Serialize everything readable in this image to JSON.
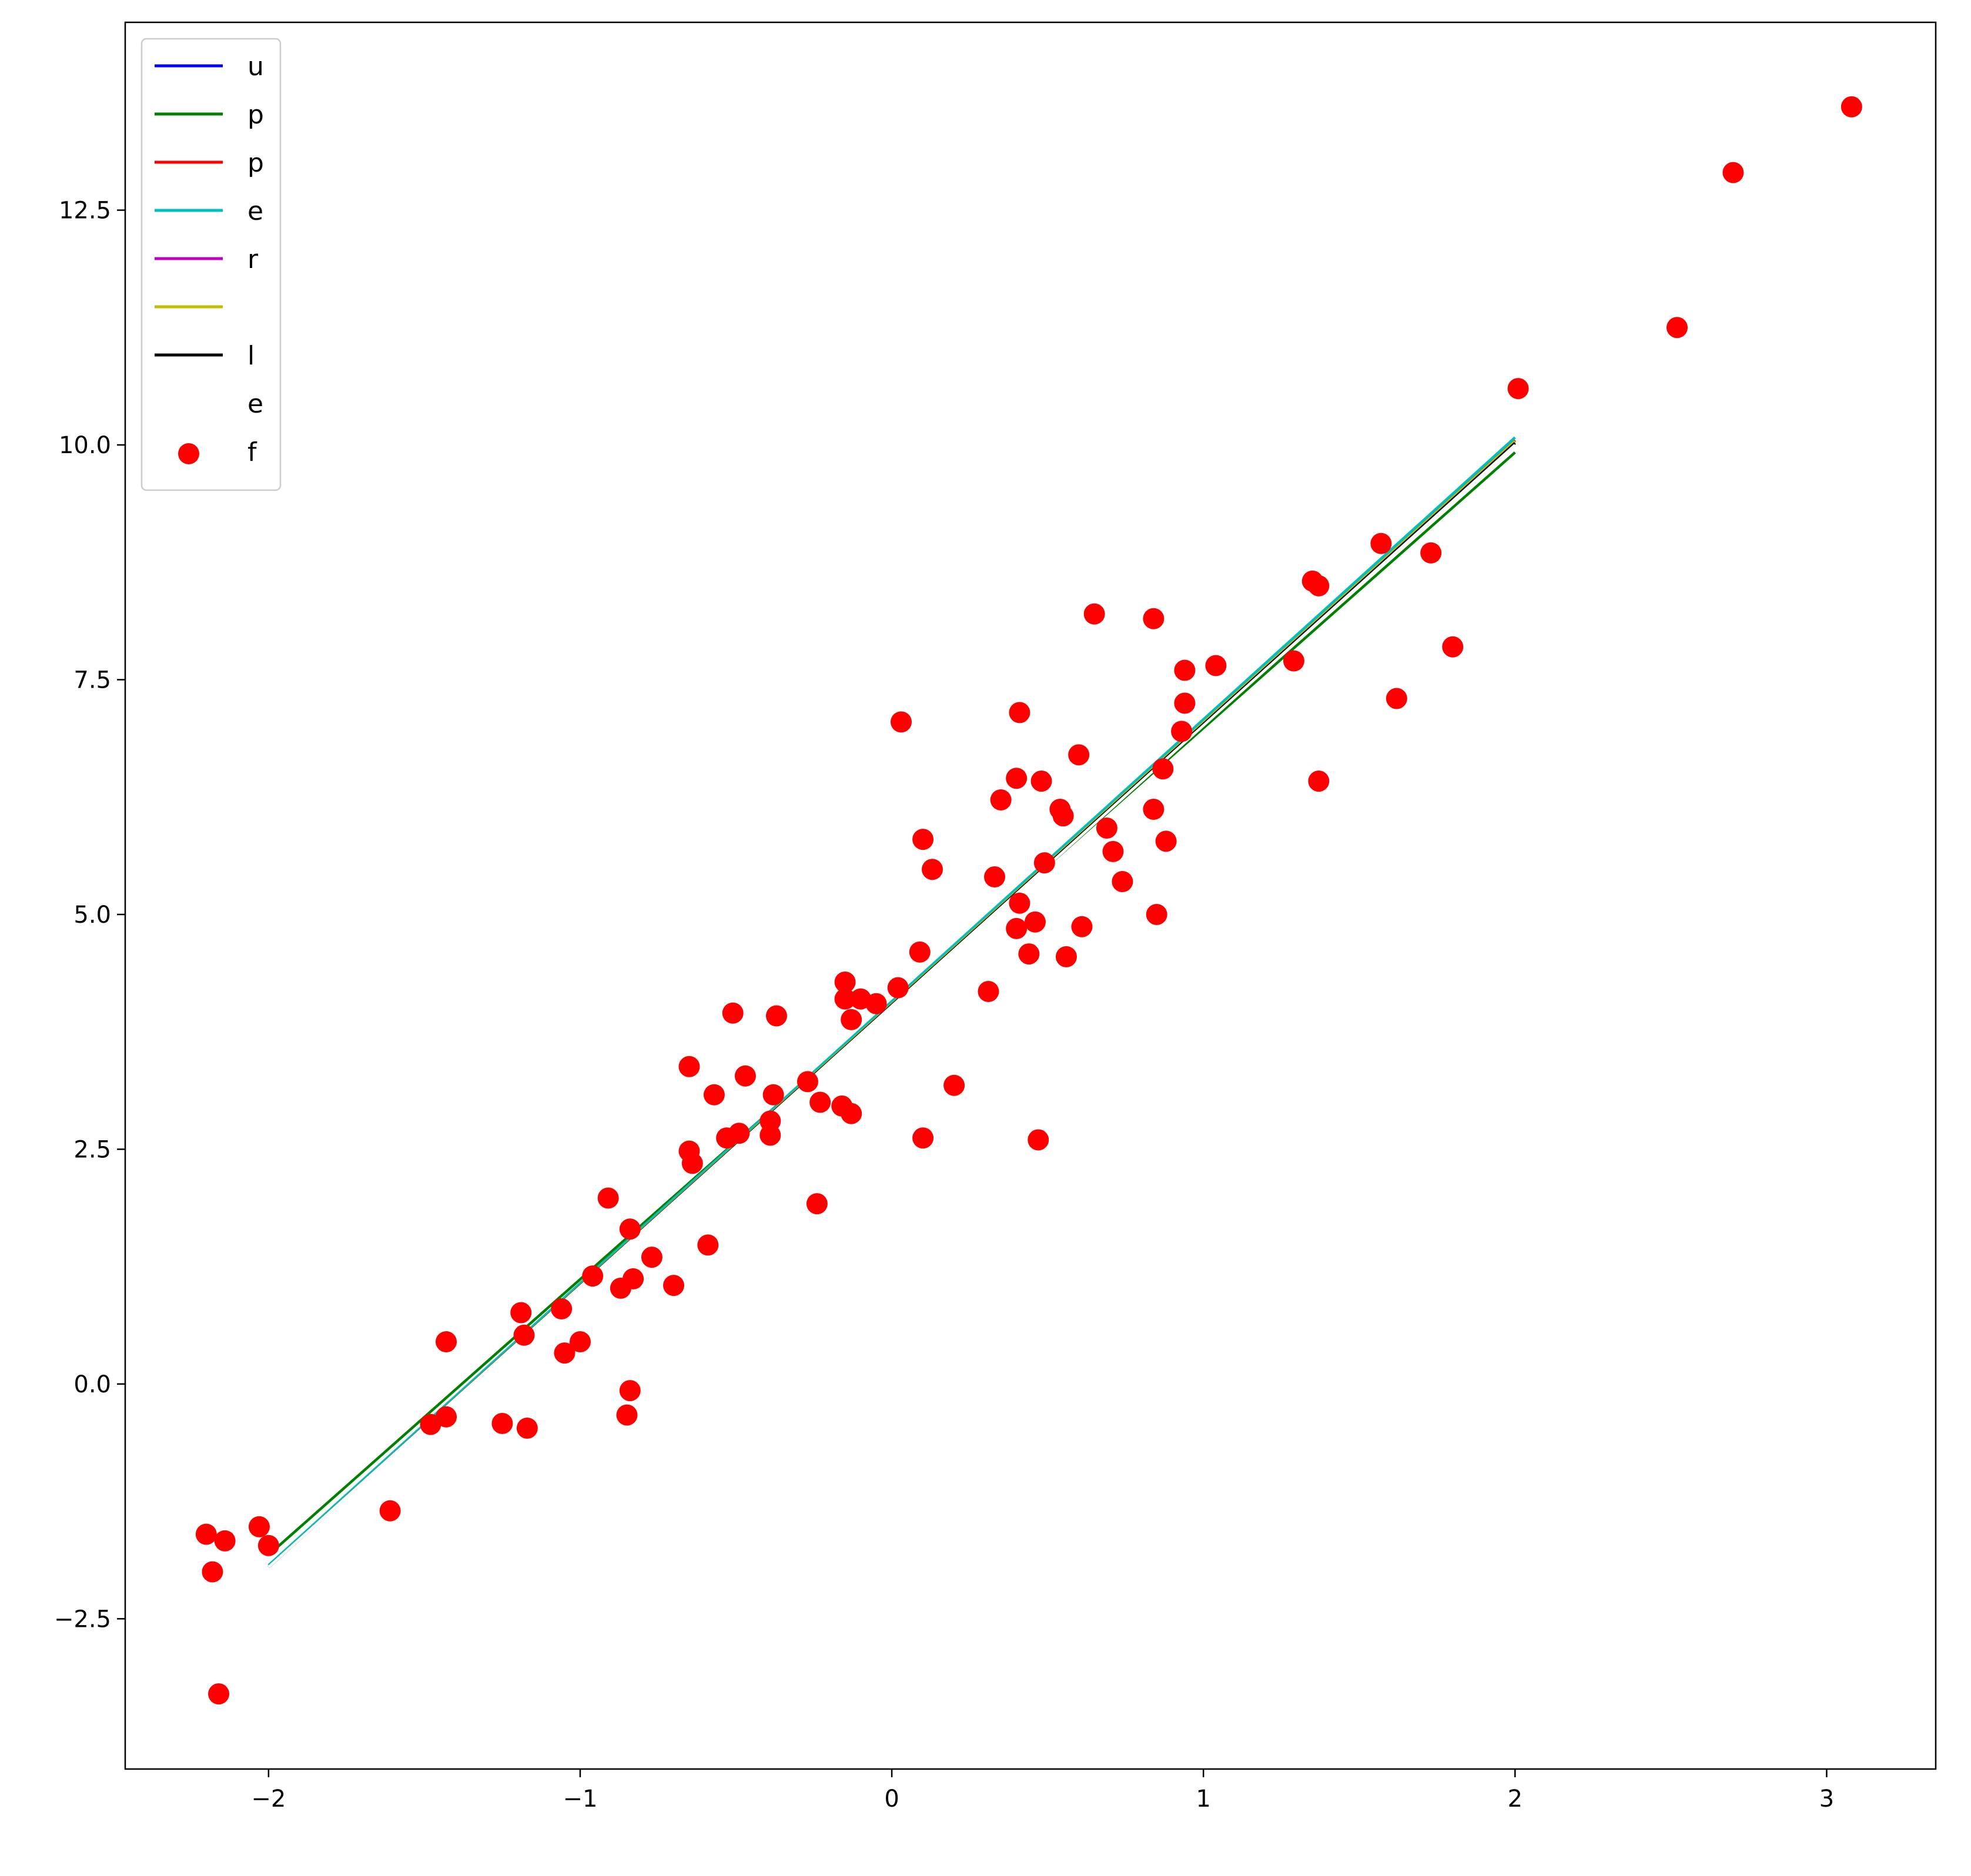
{
  "chart_data": {
    "type": "scatter",
    "title": "",
    "xlabel": "",
    "ylabel": "",
    "xlim": [
      -2.46,
      3.35
    ],
    "ylim": [
      -4.1,
      14.5
    ],
    "xticks": [
      -2,
      -1,
      0,
      1,
      2,
      3
    ],
    "xtick_labels": [
      "−2",
      "−1",
      "0",
      "1",
      "2",
      "3"
    ],
    "yticks": [
      -2.5,
      0.0,
      2.5,
      5.0,
      7.5,
      10.0,
      12.5
    ],
    "ytick_labels": [
      "−2.5",
      "0.0",
      "2.5",
      "5.0",
      "7.5",
      "10.0",
      "12.5"
    ],
    "grid": false,
    "legend_position": "top-left",
    "lines": [
      {
        "name": "u",
        "color": "#0000ff",
        "x": [
          -2,
          2
        ],
        "y": [
          -1.95,
          10.05
        ]
      },
      {
        "name": "p",
        "color": "#008000",
        "x": [
          -2,
          2
        ],
        "y": [
          -1.82,
          9.92
        ]
      },
      {
        "name": "p",
        "color": "#ff0000",
        "x": [
          -2,
          2
        ],
        "y": [
          -1.95,
          10.05
        ]
      },
      {
        "name": "e",
        "color": "#00bfbf",
        "x": [
          -2,
          2
        ],
        "y": [
          -1.93,
          10.08
        ]
      },
      {
        "name": "r",
        "color": "#bf00bf",
        "x": [
          -2,
          2
        ],
        "y": [
          -1.95,
          10.04
        ]
      },
      {
        "name": "",
        "color": "#bfbf00",
        "x": [
          -2,
          2
        ],
        "y": [
          -1.95,
          10.04
        ]
      },
      {
        "name": "l",
        "color": "#000000",
        "x": [
          -2,
          2
        ],
        "y": [
          -1.95,
          10.02
        ]
      },
      {
        "name": "e",
        "color": "#ffffff",
        "x": [
          -2,
          2
        ],
        "y": [
          -1.95,
          10.0
        ]
      }
    ],
    "scatter": {
      "name": "f",
      "color": "#ff0000",
      "points": [
        [
          3.08,
          13.6
        ],
        [
          2.7,
          12.9
        ],
        [
          2.52,
          11.25
        ],
        [
          2.01,
          10.6
        ],
        [
          1.57,
          8.95
        ],
        [
          1.73,
          8.85
        ],
        [
          1.35,
          8.55
        ],
        [
          1.37,
          8.5
        ],
        [
          0.65,
          8.2
        ],
        [
          0.84,
          8.15
        ],
        [
          1.8,
          7.85
        ],
        [
          1.29,
          7.7
        ],
        [
          1.04,
          7.65
        ],
        [
          0.94,
          7.6
        ],
        [
          1.62,
          7.3
        ],
        [
          0.94,
          7.25
        ],
        [
          0.03,
          7.05
        ],
        [
          0.41,
          7.15
        ],
        [
          0.93,
          6.95
        ],
        [
          0.6,
          6.7
        ],
        [
          0.87,
          6.55
        ],
        [
          0.4,
          6.45
        ],
        [
          0.48,
          6.42
        ],
        [
          1.37,
          6.42
        ],
        [
          0.35,
          6.22
        ],
        [
          0.54,
          6.12
        ],
        [
          0.84,
          6.12
        ],
        [
          0.55,
          6.05
        ],
        [
          0.69,
          5.92
        ],
        [
          0.1,
          5.8
        ],
        [
          0.88,
          5.78
        ],
        [
          0.71,
          5.67
        ],
        [
          0.49,
          5.55
        ],
        [
          0.13,
          5.48
        ],
        [
          0.33,
          5.4
        ],
        [
          0.74,
          5.35
        ],
        [
          0.41,
          5.12
        ],
        [
          0.85,
          5.0
        ],
        [
          0.46,
          4.92
        ],
        [
          0.61,
          4.87
        ],
        [
          0.4,
          4.85
        ],
        [
          0.09,
          4.6
        ],
        [
          0.44,
          4.58
        ],
        [
          0.56,
          4.55
        ],
        [
          -0.15,
          4.28
        ],
        [
          0.02,
          4.22
        ],
        [
          0.31,
          4.18
        ],
        [
          -0.15,
          4.1
        ],
        [
          -0.1,
          4.1
        ],
        [
          -0.05,
          4.05
        ],
        [
          -0.13,
          3.88
        ],
        [
          -0.51,
          3.95
        ],
        [
          -0.37,
          3.92
        ],
        [
          -0.65,
          3.38
        ],
        [
          -0.47,
          3.28
        ],
        [
          -0.27,
          3.22
        ],
        [
          0.2,
          3.18
        ],
        [
          -0.57,
          3.08
        ],
        [
          -0.38,
          3.08
        ],
        [
          -0.23,
          3.0
        ],
        [
          -0.16,
          2.96
        ],
        [
          -0.13,
          2.88
        ],
        [
          -0.39,
          2.8
        ],
        [
          -0.49,
          2.67
        ],
        [
          -0.53,
          2.62
        ],
        [
          -0.39,
          2.65
        ],
        [
          0.1,
          2.62
        ],
        [
          0.47,
          2.6
        ],
        [
          -0.65,
          2.48
        ],
        [
          -0.64,
          2.35
        ],
        [
          -0.24,
          1.92
        ],
        [
          -0.91,
          1.98
        ],
        [
          -0.84,
          1.65
        ],
        [
          -0.59,
          1.48
        ],
        [
          -0.77,
          1.35
        ],
        [
          -0.96,
          1.15
        ],
        [
          -0.83,
          1.12
        ],
        [
          -0.7,
          1.05
        ],
        [
          -0.87,
          1.02
        ],
        [
          -1.19,
          0.76
        ],
        [
          -1.06,
          0.8
        ],
        [
          -1.18,
          0.52
        ],
        [
          -1.43,
          0.45
        ],
        [
          -1.0,
          0.45
        ],
        [
          -1.05,
          0.33
        ],
        [
          -0.84,
          -0.07
        ],
        [
          -1.43,
          -0.35
        ],
        [
          -0.85,
          -0.33
        ],
        [
          -1.48,
          -0.43
        ],
        [
          -1.25,
          -0.42
        ],
        [
          -1.17,
          -0.47
        ],
        [
          -1.61,
          -1.35
        ],
        [
          -2.2,
          -1.6
        ],
        [
          -2.03,
          -1.52
        ],
        [
          -2.14,
          -1.67
        ],
        [
          -2.0,
          -1.72
        ],
        [
          -2.18,
          -2.0
        ],
        [
          -2.16,
          -3.3
        ]
      ]
    },
    "legend": [
      {
        "label": "u",
        "kind": "line",
        "color": "#0000ff"
      },
      {
        "label": "p",
        "kind": "line",
        "color": "#008000"
      },
      {
        "label": "p",
        "kind": "line",
        "color": "#ff0000"
      },
      {
        "label": "e",
        "kind": "line",
        "color": "#00bfbf"
      },
      {
        "label": "r",
        "kind": "line",
        "color": "#bf00bf"
      },
      {
        "label": "",
        "kind": "line",
        "color": "#bfbf00"
      },
      {
        "label": "l",
        "kind": "line",
        "color": "#000000"
      },
      {
        "label": "e",
        "kind": "line",
        "color": "#ffffff"
      },
      {
        "label": "f",
        "kind": "marker",
        "color": "#ff0000"
      }
    ]
  }
}
